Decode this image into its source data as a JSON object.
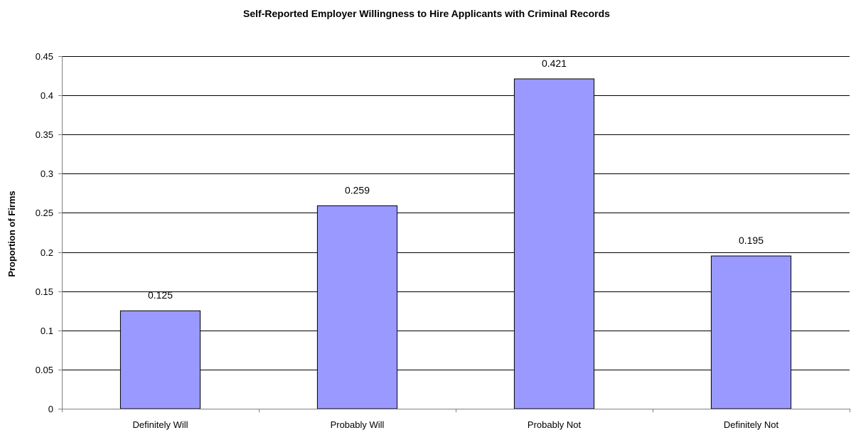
{
  "chart_data": {
    "type": "bar",
    "title": "Self-Reported Employer Willingness to Hire Applicants with Criminal Records",
    "xlabel": "",
    "ylabel": "Proportion of Firms",
    "categories": [
      "Definitely Will",
      "Probably Will",
      "Probably Not",
      "Definitely Not"
    ],
    "values": [
      0.125,
      0.259,
      0.421,
      0.195
    ],
    "data_labels": [
      "0.125",
      "0.259",
      "0.421",
      "0.195"
    ],
    "ylim": [
      0,
      0.45
    ],
    "yticks": [
      0,
      0.05,
      0.1,
      0.15,
      0.2,
      0.25,
      0.3,
      0.35,
      0.4,
      0.45
    ],
    "ytick_labels": [
      "0",
      "0.05",
      "0.1",
      "0.15",
      "0.2",
      "0.25",
      "0.3",
      "0.35",
      "0.4",
      "0.45"
    ],
    "grid": true,
    "legend": "none",
    "colors": {
      "bar_fill": "#9999ff",
      "bar_stroke": "#000000",
      "gridline": "#000000",
      "axis": "#808080"
    }
  }
}
